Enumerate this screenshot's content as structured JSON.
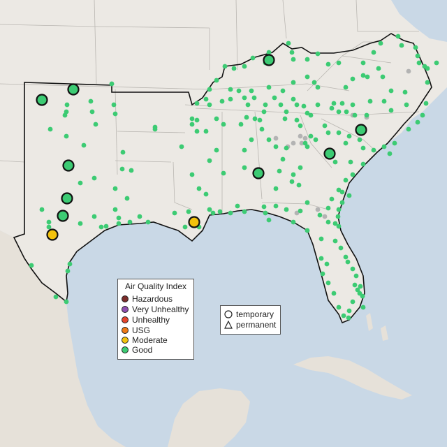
{
  "colors": {
    "ocean": "#c9d8e6",
    "land": "#ece9e4",
    "mexico": "#e6e1d9",
    "border_state": "#b9b6b1",
    "region_outline": "#111111",
    "good": "#3ccb73",
    "moderate": "#f3c20c",
    "usg": "#ef7a16",
    "unhealthy": "#e5452d",
    "very_unhealthy": "#8e4fb0",
    "hazardous": "#7b2d2b",
    "no_data": "#b3b3b3"
  },
  "legend": {
    "title": "Air Quality Index",
    "items": [
      {
        "label": "Hazardous",
        "color": "#7b2d2b"
      },
      {
        "label": "Very Unhealthy",
        "color": "#8e4fb0"
      },
      {
        "label": "Unhealthy",
        "color": "#e5452d"
      },
      {
        "label": "USG",
        "color": "#ef7a16"
      },
      {
        "label": "Moderate",
        "color": "#f3c20c"
      },
      {
        "label": "Good",
        "color": "#3ccb73"
      }
    ]
  },
  "shape_legend": {
    "items": [
      {
        "label": "temporary",
        "icon": "circle-icon"
      },
      {
        "label": "permanent",
        "icon": "triangle-icon"
      }
    ]
  }
}
